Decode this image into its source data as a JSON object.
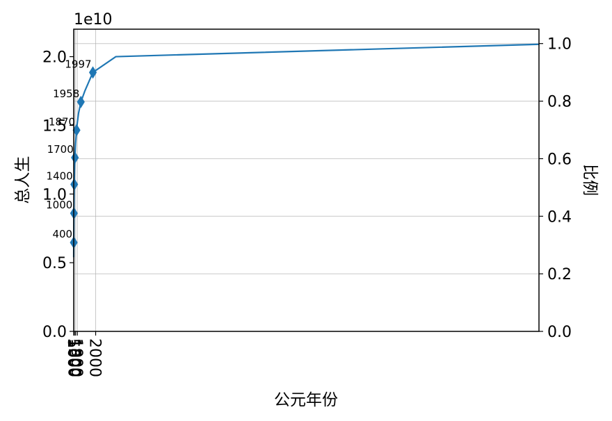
{
  "chart_data": {
    "type": "line",
    "xlabel": "公元年份",
    "ylabel_left": "总人生",
    "ylabel_right": "比例",
    "y_offset_label": "1e10",
    "x_axis": {
      "scale": "reciprocal",
      "reference_year": 2021,
      "xlim": [
        1,
        2021
      ],
      "ticks": [
        1,
        500,
        1000,
        1500,
        1800,
        1900,
        2000
      ],
      "tick_labels": [
        "1",
        "500",
        "1000",
        "1500",
        "1800",
        "1900",
        "2000"
      ]
    },
    "y_left": {
      "ylim": [
        0,
        2.2
      ],
      "ticks": [
        0.0,
        0.5,
        1.0,
        1.5,
        2.0
      ],
      "tick_labels": [
        "0.0",
        "0.5",
        "1.0",
        "1.5",
        "2.0"
      ]
    },
    "y_right": {
      "ylim": [
        0,
        1.05
      ],
      "ticks": [
        0.0,
        0.2,
        0.4,
        0.6,
        0.8,
        1.0
      ],
      "tick_labels": [
        "0.0",
        "0.2",
        "0.4",
        "0.6",
        "0.8",
        "1.0"
      ]
    },
    "grid": true,
    "series": [
      {
        "color": "#1f77b4",
        "curve": [
          [
            1,
            0.54
          ],
          [
            100,
            0.566
          ],
          [
            200,
            0.594
          ],
          [
            300,
            0.62
          ],
          [
            400,
            0.647
          ],
          [
            500,
            0.675
          ],
          [
            600,
            0.705
          ],
          [
            700,
            0.737
          ],
          [
            800,
            0.772
          ],
          [
            900,
            0.812
          ],
          [
            1000,
            0.86
          ],
          [
            1100,
            0.903
          ],
          [
            1200,
            0.955
          ],
          [
            1300,
            1.01
          ],
          [
            1400,
            1.07
          ],
          [
            1500,
            1.14
          ],
          [
            1600,
            1.21
          ],
          [
            1700,
            1.265
          ],
          [
            1750,
            1.31
          ],
          [
            1800,
            1.37
          ],
          [
            1850,
            1.43
          ],
          [
            1870,
            1.465
          ],
          [
            1900,
            1.52
          ],
          [
            1930,
            1.59
          ],
          [
            1958,
            1.67
          ],
          [
            1980,
            1.75
          ],
          [
            1997,
            1.885
          ],
          [
            2010,
            2.0
          ],
          [
            2021,
            2.09
          ]
        ],
        "markers": [
          {
            "year": 400,
            "label": "400",
            "value": 0.647
          },
          {
            "year": 1000,
            "label": "1000",
            "value": 0.86
          },
          {
            "year": 1400,
            "label": "1400",
            "value": 1.07
          },
          {
            "year": 1700,
            "label": "1700",
            "value": 1.265
          },
          {
            "year": 1870,
            "label": "1870",
            "value": 1.465
          },
          {
            "year": 1958,
            "label": "1958",
            "value": 1.67
          },
          {
            "year": 1997,
            "label": "1997",
            "value": 1.885
          }
        ]
      }
    ]
  }
}
